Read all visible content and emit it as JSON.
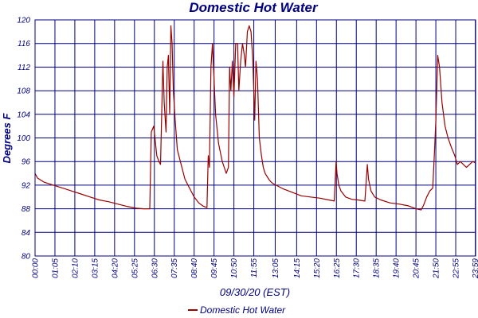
{
  "chart_data": {
    "type": "line",
    "title": "Domestic Hot Water",
    "xlabel": "09/30/20 (EST)",
    "ylabel": "Degrees F",
    "ylim": [
      80,
      120
    ],
    "yticks": [
      80,
      84,
      88,
      92,
      96,
      100,
      104,
      108,
      112,
      116,
      120
    ],
    "xlim_minutes": [
      0,
      1440
    ],
    "xticks": [
      "00:00",
      "01:05",
      "02:10",
      "03:15",
      "04:20",
      "05:25",
      "06:30",
      "07:35",
      "08:40",
      "09:45",
      "10:50",
      "11:55",
      "13:05",
      "14:15",
      "15:20",
      "16:25",
      "17:30",
      "18:35",
      "19:40",
      "20:45",
      "21:50",
      "22:55",
      "23:59"
    ],
    "xtick_minutes": [
      0,
      65,
      130,
      195,
      260,
      325,
      390,
      455,
      520,
      585,
      650,
      715,
      785,
      855,
      920,
      985,
      1050,
      1115,
      1180,
      1245,
      1310,
      1375,
      1439
    ],
    "grid": true,
    "legend_position": "bottom-center",
    "line_color": "#990000",
    "series": [
      {
        "name": "Domestic Hot Water",
        "x": [
          0,
          8,
          30,
          60,
          90,
          120,
          150,
          180,
          210,
          240,
          270,
          300,
          330,
          355,
          368,
          375,
          380,
          388,
          398,
          405,
          410,
          418,
          422,
          428,
          432,
          436,
          440,
          444,
          448,
          452,
          458,
          465,
          475,
          490,
          505,
          520,
          535,
          548,
          557,
          562,
          566,
          570,
          575,
          580,
          590,
          600,
          612,
          625,
          632,
          636,
          640,
          645,
          650,
          656,
          662,
          666,
          672,
          678,
          684,
          688,
          694,
          700,
          706,
          712,
          718,
          722,
          727,
          733,
          740,
          746,
          752,
          758,
          764,
          772,
          780,
          795,
          810,
          830,
          850,
          870,
          900,
          930,
          960,
          978,
          984,
          987,
          993,
          1000,
          1015,
          1035,
          1055,
          1078,
          1086,
          1090,
          1098,
          1110,
          1130,
          1160,
          1190,
          1220,
          1245,
          1262,
          1270,
          1280,
          1290,
          1300,
          1306,
          1310,
          1316,
          1322,
          1330,
          1340,
          1350,
          1360,
          1372,
          1380,
          1390,
          1410,
          1430,
          1439
        ],
        "y": [
          94,
          93.2,
          92.5,
          92,
          91.5,
          91,
          90.5,
          90,
          89.5,
          89.2,
          88.8,
          88.4,
          88.1,
          88,
          88,
          88,
          101,
          102,
          97,
          96,
          95.5,
          113,
          106,
          101,
          112,
          114,
          104,
          119,
          116,
          108,
          103,
          98,
          96,
          93,
          91.5,
          90,
          89,
          88.5,
          88.3,
          88.2,
          97,
          95,
          112,
          116,
          104,
          99,
          96,
          94,
          95,
          112,
          108,
          113,
          107,
          116,
          116,
          108,
          113,
          116,
          114,
          112,
          118,
          119,
          118,
          113,
          103,
          113,
          110,
          100,
          97,
          95,
          94,
          93.5,
          93,
          92.5,
          92.2,
          91.8,
          91.4,
          91,
          90.6,
          90.2,
          90,
          89.8,
          89.5,
          89.3,
          96,
          94,
          92,
          91,
          90,
          89.6,
          89.5,
          89.3,
          95.5,
          93,
          91,
          90,
          89.5,
          89,
          88.8,
          88.5,
          88,
          87.8,
          88.6,
          90,
          91,
          91.5,
          98,
          103,
          114,
          112,
          106,
          102,
          100,
          98.5,
          97,
          95.5,
          96,
          95,
          96,
          95.8
        ]
      }
    ]
  }
}
